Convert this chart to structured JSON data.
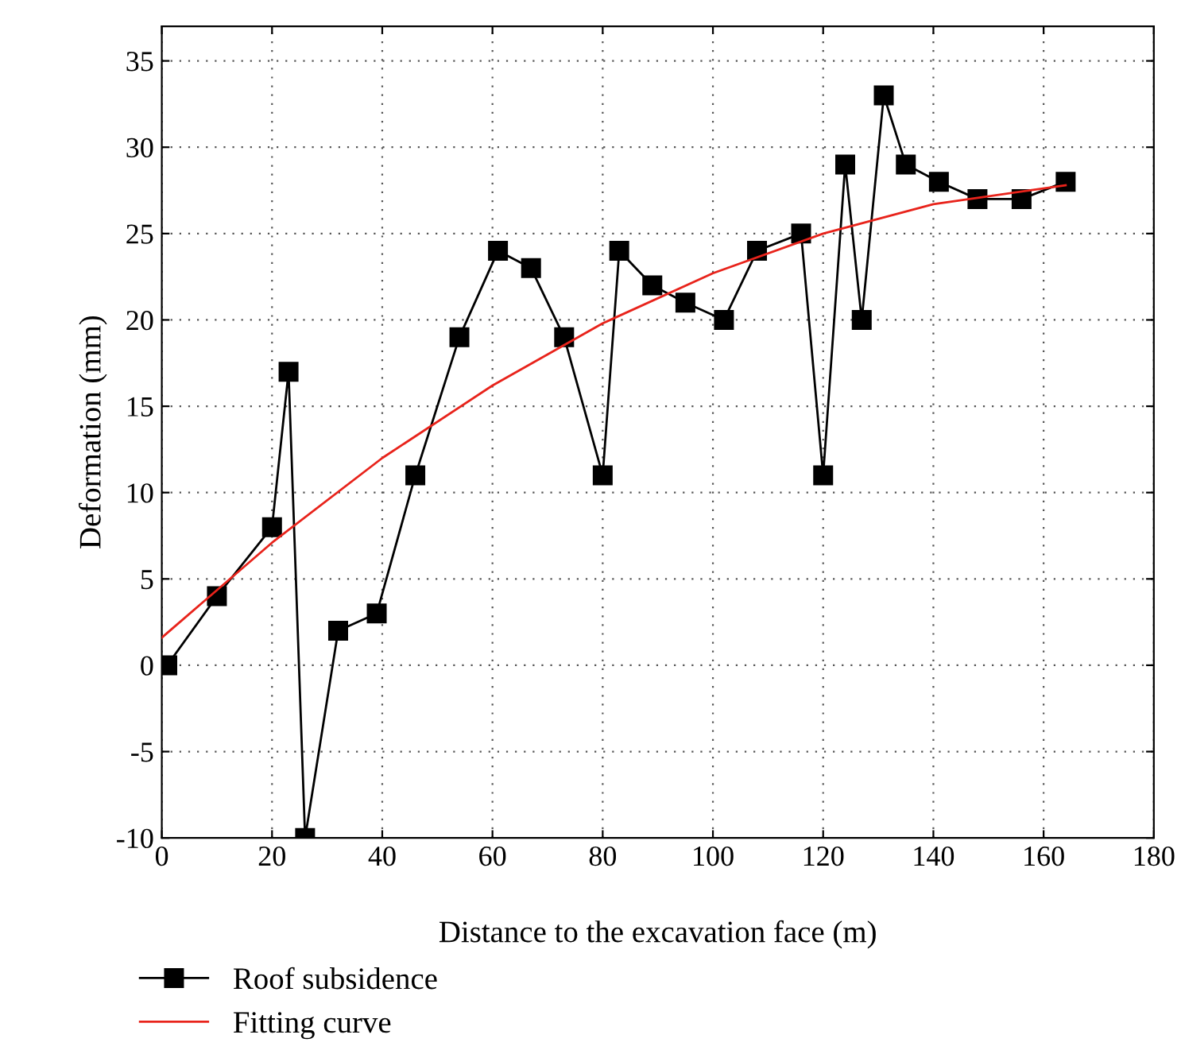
{
  "chart_data": {
    "type": "line",
    "xlabel": "Distance to the excavation face (m)",
    "ylabel": "Deformation (mm)",
    "xlim": [
      0,
      180
    ],
    "xticks": [
      0,
      20,
      40,
      60,
      80,
      100,
      120,
      140,
      160,
      180
    ],
    "ylim": [
      -10,
      37
    ],
    "yticks": [
      -10,
      -5,
      0,
      5,
      10,
      15,
      20,
      25,
      30,
      35
    ],
    "grid": true,
    "legend": "bottom",
    "series": [
      {
        "name": "Roof subsidence",
        "color": "#000000",
        "marker": "square",
        "line_style": "solid",
        "x": [
          1,
          10,
          20,
          23,
          26,
          32,
          39,
          46,
          54,
          61,
          67,
          73,
          80,
          83,
          89,
          95,
          102,
          108,
          116,
          120,
          124,
          127,
          131,
          135,
          141,
          148,
          156,
          164
        ],
        "values": [
          0,
          4,
          8,
          17,
          -10,
          2,
          3,
          11,
          19,
          24,
          23,
          19,
          11,
          24,
          22,
          21,
          20,
          24,
          25,
          11,
          29,
          20,
          33,
          29,
          28,
          27,
          27,
          28
        ]
      },
      {
        "name": "Fitting curve",
        "color": "#e8231b",
        "marker": "none",
        "line_style": "solid",
        "x": [
          0,
          20,
          40,
          60,
          80,
          100,
          120,
          140,
          164
        ],
        "values": [
          1.6,
          7.1,
          12.0,
          16.2,
          19.8,
          22.7,
          25.0,
          26.7,
          27.8
        ]
      }
    ]
  }
}
